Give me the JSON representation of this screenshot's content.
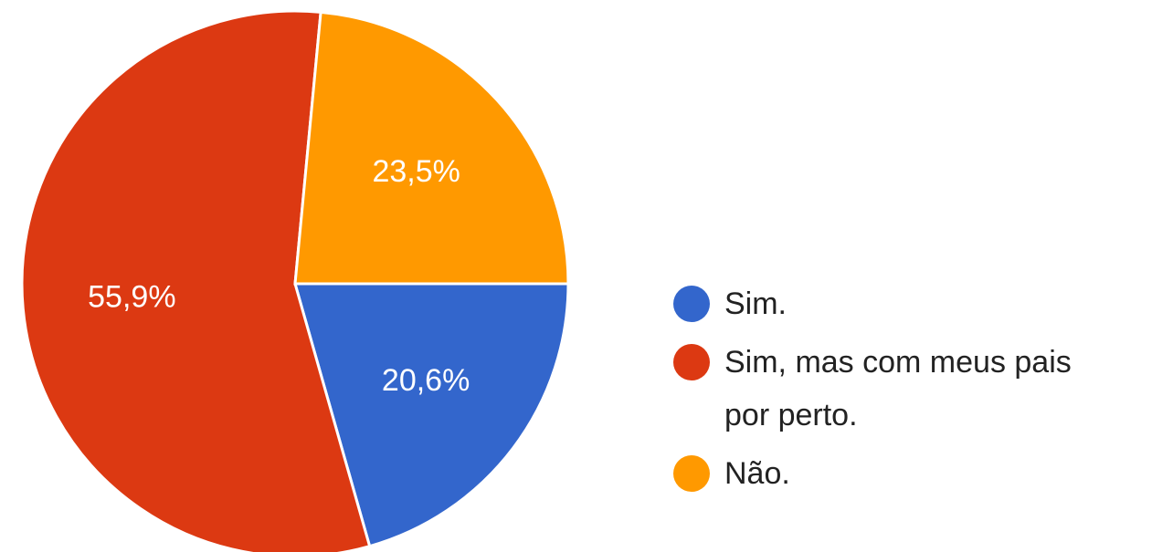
{
  "chart_data": {
    "type": "pie",
    "categories": [
      "Sim.",
      "Sim, mas com meus pais por perto.",
      "Não."
    ],
    "values": [
      20.6,
      55.9,
      23.5
    ],
    "value_labels": [
      "20,6%",
      "55,9%",
      "23,5%"
    ],
    "colors": [
      "#3366cc",
      "#dc3912",
      "#ff9900"
    ],
    "legend": "right"
  }
}
